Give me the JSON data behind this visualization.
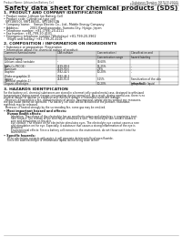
{
  "title": "Safety data sheet for chemical products (SDS)",
  "header_left": "Product Name: Lithium Ion Battery Cell",
  "header_right_l1": "Substance Number: MX7530-00015",
  "header_right_l2": "Establishment / Revision: Dec.7.2016",
  "section1_title": "1. PRODUCT AND COMPANY IDENTIFICATION",
  "section1_lines": [
    "• Product name: Lithium Ion Battery Cell",
    "• Product code: Cylindrical-type cell",
    "  SRY18650J, SRY18650L, SRY18650A",
    "• Company name:    Sanyo Electric Co., Ltd., Mobile Energy Company",
    "• Address:            2001 Kamikawanabe, Sumoto-City, Hyogo, Japan",
    "• Telephone number: +81-(799)-20-4111",
    "• Fax number: +81-799-20-4101",
    "• Emergency telephone number (Weekdays) +81-799-20-3962",
    "    (Night and holiday) +81-799-20-4101"
  ],
  "section2_title": "2. COMPOSITION / INFORMATION ON INGREDIENTS",
  "section2_intro": "• Substance or preparation: Preparation",
  "section2_sub": "• Information about the chemical nature of product:",
  "col_headers": [
    "Common/chemical name",
    "CAS number",
    "Concentration /\nConcentration range",
    "Classification and\nhazard labeling"
  ],
  "col_subheader": "General name",
  "table_rows": [
    [
      "Lithium cobalt tantalate\n(LiMn-Co-PSOO4)",
      "-",
      "30-60%",
      ""
    ],
    [
      "Iron",
      "7439-89-6",
      "15-25%",
      "-"
    ],
    [
      "Aluminum",
      "7429-90-5",
      "2-5%",
      "-"
    ],
    [
      "Graphite\n(Flake or graphite-1)\n(Artificial graphite-1)",
      "7782-42-5\n7782-44-2",
      "10-20%",
      "-"
    ],
    [
      "Copper",
      "7440-50-8",
      "5-15%",
      "Sensitization of the skin\ngroup No.2"
    ],
    [
      "Organic electrolyte",
      "-",
      "10-20%",
      "Inflammable liquid"
    ]
  ],
  "section3_title": "3. HAZARDS IDENTIFICATION",
  "para_lines": [
    "For the battery cell, chemical substances are stored in a hermetically sealed metal case, designed to withstand",
    "temperatures during normal storage-consumption during normal use. As a result, during normal-use, there is no",
    "physical danger of ignition or explosion and therefore danger of hazardous materials leakage.",
    "  However, if exposed to a fire, added mechanical shocks, decomposed, similar alarms without any measures,",
    "the gas inside cannot be operated. The battery cell case will be breached of the portions, hazardous",
    "materials may be released.",
    "  Moreover, if heated strongly by the surrounding fire, some gas may be emitted."
  ],
  "bullet1": "• Most important hazard and effects:",
  "human_header": "Human health effects:",
  "human_lines": [
    "Inhalation: The release of the electrolyte has an anesthetic action and stimulates in respiratory tract.",
    "Skin contact: The release of the electrolyte stimulates a skin. The electrolyte skin contact causes a",
    "sore and stimulation on the skin.",
    "Eye contact: The release of the electrolyte stimulates eyes. The electrolyte eye contact causes a sore",
    "and stimulation on the eye. Especially, a substance that causes a strong inflammation of the eye is",
    "contained.",
    "Environmental effects: Since a battery cell remains in the environment, do not throw out it into the",
    "environment."
  ],
  "bullet2": "• Specific hazards:",
  "specific_lines": [
    "If the electrolyte contacts with water, it will generate detrimental hydrogen fluoride.",
    "Since the said electrolyte is inflammable liquid, do not bring close to fire."
  ],
  "bg_color": "#ffffff",
  "text_color": "#1a1a1a",
  "line_color": "#555555",
  "gray_fill": "#dddddd"
}
